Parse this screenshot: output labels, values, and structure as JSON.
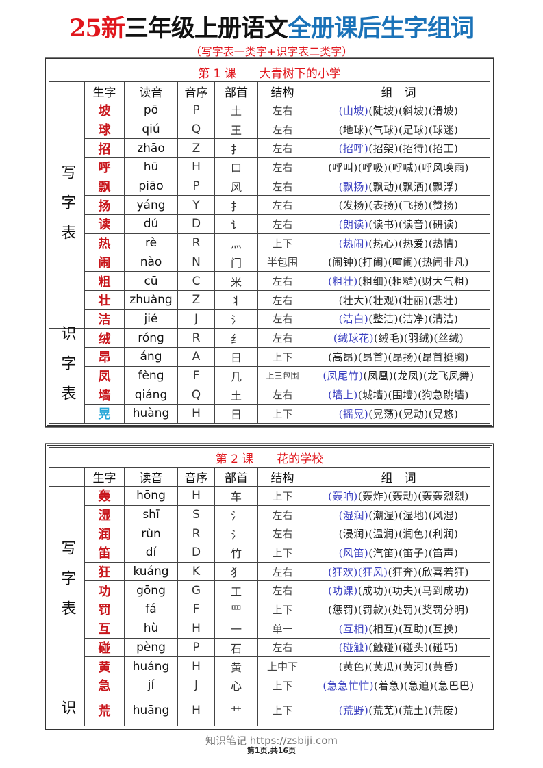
{
  "title": {
    "part1": "25新",
    "part2": "三年级上册语文",
    "part3": "全册课后生字组词"
  },
  "subtitle": "（写字表一类字+识字表二类字）",
  "colors": {
    "red": "#e0161c",
    "blue_title": "#1a72b8",
    "word_highlight": "#3a3fc0",
    "char_red": "#c8161c",
    "char_cyan": "#29a8d8"
  },
  "headers": [
    "生字",
    "读音",
    "音序",
    "部首",
    "结构",
    "组　词"
  ],
  "lessons": [
    {
      "title": "第 1 课　　大青树下的小学",
      "groups": [
        {
          "label": "写字表",
          "rows": [
            {
              "char": "坡",
              "pinyin": "pō",
              "initial": "P",
              "radical": "土",
              "structure": "左右",
              "hl": "(山坡)",
              "words": "(陡坡)(斜坡)(滑坡)"
            },
            {
              "char": "球",
              "pinyin": "qiú",
              "initial": "Q",
              "radical": "王",
              "structure": "左右",
              "hl": "",
              "words": "(地球)(气球)(足球)(球迷)"
            },
            {
              "char": "招",
              "pinyin": "zhāo",
              "initial": "Z",
              "radical": "扌",
              "structure": "左右",
              "hl": "(招呼)",
              "words": "(招架)(招待)(招工)"
            },
            {
              "char": "呼",
              "pinyin": "hū",
              "initial": "H",
              "radical": "口",
              "structure": "左右",
              "hl": "",
              "words": "(呼叫)(呼吸)(呼喊)(呼风唤雨)"
            },
            {
              "char": "飘",
              "pinyin": "piāo",
              "initial": "P",
              "radical": "风",
              "structure": "左右",
              "hl": "(飘扬)",
              "words": "(飘动)(飘洒)(飘浮)"
            },
            {
              "char": "扬",
              "pinyin": "yáng",
              "initial": "Y",
              "radical": "扌",
              "structure": "左右",
              "hl": "",
              "words": "(发扬)(表扬)(飞扬)(赞扬)"
            },
            {
              "char": "读",
              "pinyin": "dú",
              "initial": "D",
              "radical": "讠",
              "structure": "左右",
              "hl": "(朗读)",
              "words": "(读书)(读音)(研读)"
            },
            {
              "char": "热",
              "pinyin": "rè",
              "initial": "R",
              "radical": "灬",
              "structure": "上下",
              "hl": "(热闹)",
              "words": "(热心)(热爱)(热情)"
            },
            {
              "char": "闹",
              "pinyin": "nào",
              "initial": "N",
              "radical": "门",
              "structure": "半包围",
              "hl": "",
              "words": "(闹钟)(打闹)(喧闹)(热闹非凡)"
            },
            {
              "char": "粗",
              "pinyin": "cū",
              "initial": "C",
              "radical": "米",
              "structure": "左右",
              "hl": "(粗壮)",
              "words": "(粗细)(粗糙)(财大气粗)"
            },
            {
              "char": "壮",
              "pinyin": "zhuàng",
              "initial": "Z",
              "radical": "丬",
              "structure": "左右",
              "hl": "",
              "words": "(壮大)(壮观)(壮丽)(悲壮)"
            },
            {
              "char": "洁",
              "pinyin": "jié",
              "initial": "J",
              "radical": "氵",
              "structure": "左右",
              "hl": "(洁白)",
              "words": "(整洁)(洁净)(清洁)"
            }
          ]
        },
        {
          "label": "识字表",
          "rows": [
            {
              "char": "绒",
              "pinyin": "róng",
              "initial": "R",
              "radical": "纟",
              "structure": "左右",
              "hl": "(绒球花)",
              "words": "(绒毛)(羽绒)(丝绒)"
            },
            {
              "char": "昂",
              "pinyin": "áng",
              "initial": "A",
              "radical": "日",
              "structure": "上下",
              "hl": "",
              "words": "(高昂)(昂首)(昂扬)(昂首挺胸)"
            },
            {
              "char": "凤",
              "pinyin": "fèng",
              "initial": "F",
              "radical": "几",
              "structure": "上三包围",
              "hl": "(凤尾竹)",
              "words": "(凤凰)(龙凤)(龙飞凤舞)"
            },
            {
              "char": "墙",
              "pinyin": "qiáng",
              "initial": "Q",
              "radical": "土",
              "structure": "左右",
              "hl": "(墙上)",
              "words": "(城墙)(围墙)(狗急跳墙)"
            },
            {
              "char": "晃",
              "pinyin": "huàng",
              "initial": "H",
              "radical": "日",
              "structure": "上下",
              "hl": "(摇晃)",
              "words": "(晃荡)(晃动)(晃悠)",
              "cyan": true
            }
          ]
        }
      ]
    },
    {
      "title": "第 2 课　　花的学校",
      "groups": [
        {
          "label": "写字表",
          "rows": [
            {
              "char": "轰",
              "pinyin": "hōng",
              "initial": "H",
              "radical": "车",
              "structure": "上下",
              "hl": "(轰响)",
              "words": "(轰炸)(轰动)(轰轰烈烈)"
            },
            {
              "char": "湿",
              "pinyin": "shī",
              "initial": "S",
              "radical": "氵",
              "structure": "左右",
              "hl": "(湿润)",
              "words": "(潮湿)(湿地)(风湿)"
            },
            {
              "char": "润",
              "pinyin": "rùn",
              "initial": "R",
              "radical": "氵",
              "structure": "左右",
              "hl": "",
              "words": "(浸润)(温润)(润色)(利润)"
            },
            {
              "char": "笛",
              "pinyin": "dí",
              "initial": "D",
              "radical": "竹",
              "structure": "上下",
              "hl": "(风笛)",
              "words": "(汽笛)(笛子)(笛声)"
            },
            {
              "char": "狂",
              "pinyin": "kuáng",
              "initial": "K",
              "radical": "犭",
              "structure": "左右",
              "hl": "(狂欢)(狂风)",
              "words": "(狂奔)(欣喜若狂)"
            },
            {
              "char": "功",
              "pinyin": "gōng",
              "initial": "G",
              "radical": "工",
              "structure": "左右",
              "hl": "(功课)",
              "words": "(成功)(功夫)(马到成功)"
            },
            {
              "char": "罚",
              "pinyin": "fá",
              "initial": "F",
              "radical": "罒",
              "structure": "上下",
              "hl": "",
              "words": "(惩罚)(罚款)(处罚)(奖罚分明)"
            },
            {
              "char": "互",
              "pinyin": "hù",
              "initial": "H",
              "radical": "一",
              "structure": "单一",
              "hl": "(互相)",
              "words": "(相互)(互助)(互换)"
            },
            {
              "char": "碰",
              "pinyin": "pèng",
              "initial": "P",
              "radical": "石",
              "structure": "左右",
              "hl": "(碰触)",
              "words": "(触碰)(碰头)(碰巧)"
            },
            {
              "char": "黄",
              "pinyin": "huáng",
              "initial": "H",
              "radical": "黄",
              "structure": "上中下",
              "hl": "",
              "words": "(黄色)(黄瓜)(黄河)(黄昏)"
            },
            {
              "char": "急",
              "pinyin": "jí",
              "initial": "J",
              "radical": "心",
              "structure": "上下",
              "hl": "(急急忙忙)",
              "words": "(着急)(急迫)(急巴巴)"
            }
          ]
        },
        {
          "label": "识",
          "rows": [
            {
              "char": "荒",
              "pinyin": "huāng",
              "initial": "H",
              "radical": "艹",
              "structure": "上下",
              "hl": "(荒野)",
              "words": "(荒芜)(荒土)(荒废)"
            }
          ]
        }
      ]
    }
  ],
  "footer": {
    "watermark": "知识笔记 https://zsbiji.com",
    "pager": "第1页,共16页"
  }
}
